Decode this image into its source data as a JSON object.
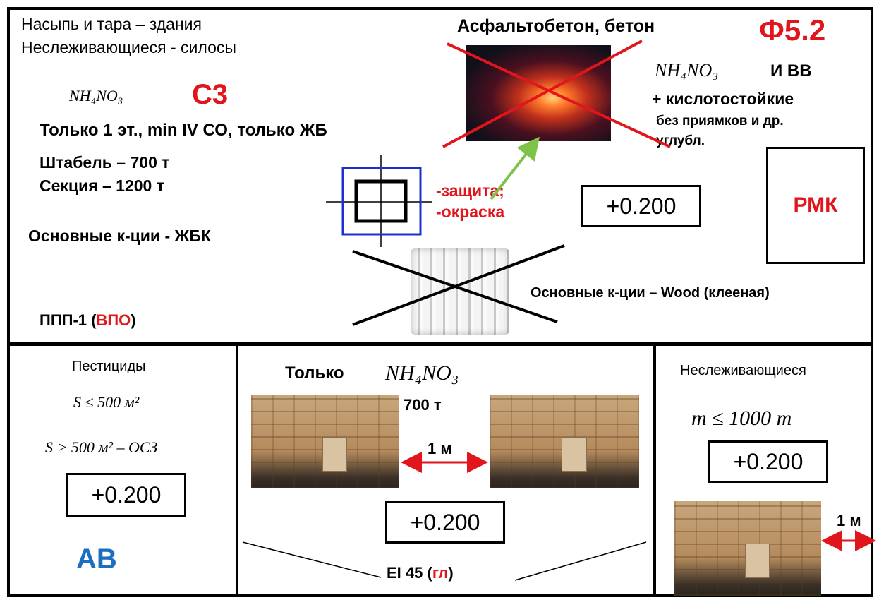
{
  "top": {
    "line1": "Насыпь и тара – здания",
    "line2": "Неслеживающиеся - силосы",
    "formula": "NH₄NO₃",
    "class_label": "С3",
    "floors": "Только 1 эт., min IV СО, только ЖБ",
    "stack": "Штабель – 700 т",
    "section": "Секция – 1200 т",
    "main_concrete": "Основные к-ции - ЖБК",
    "ppp_prefix": "ППП-1 (",
    "ppp_red": "ВПО",
    "ppp_suffix": ")",
    "asphalt": "Асфальтобетон, бетон",
    "f52": "Ф5.2",
    "formula2": "NH₄NO₃",
    "and_vv": "И ВВ",
    "acid": "+ кислотостойкие",
    "no_pits1": "без приямков и др.",
    "no_pits2": "углубл.",
    "protect1": "-защита;",
    "protect2": "-окраска",
    "level": "+0.200",
    "rmk": "РМК",
    "wood": "Основные к-ции – Wood (клееная)"
  },
  "bottom_left": {
    "title": "Пестициды",
    "s_le": "S ≤ 500 м²",
    "s_gt": "S > 500 м² – ОСЗ",
    "level": "+0.200",
    "av": "АВ"
  },
  "bottom_mid": {
    "only": "Только",
    "formula": "NH₄NO₃",
    "tons": "700 т",
    "gap": "1 м",
    "level": "+0.200",
    "ei_prefix": "EI 45 (",
    "ei_red": "гл",
    "ei_suffix": ")"
  },
  "bottom_right": {
    "title": "Неслеживающиеся",
    "mass": "m ≤ 1000 т",
    "level": "+0.200",
    "gap": "1 м"
  },
  "colors": {
    "accent_red": "#e0161c",
    "accent_blue": "#1a6fc0",
    "square_blue": "#1e2fd0",
    "arrow_green": "#7fc24a"
  }
}
